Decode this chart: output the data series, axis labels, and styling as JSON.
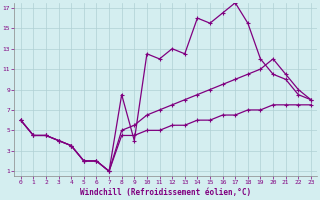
{
  "bg_color": "#d4eef0",
  "line_color": "#800080",
  "grid_color": "#b0d0d4",
  "xlabel": "Windchill (Refroidissement éolien,°C)",
  "xlabel_color": "#800080",
  "tick_color": "#800080",
  "xlim": [
    -0.5,
    23.5
  ],
  "ylim": [
    0.5,
    17.5
  ],
  "xticks": [
    0,
    1,
    2,
    3,
    4,
    5,
    6,
    7,
    8,
    9,
    10,
    11,
    12,
    13,
    14,
    15,
    16,
    17,
    18,
    19,
    20,
    21,
    22,
    23
  ],
  "yticks": [
    1,
    3,
    5,
    7,
    9,
    11,
    13,
    15,
    17
  ],
  "common_x": [
    0,
    1,
    2,
    3,
    4,
    5,
    6,
    7
  ],
  "common_y": [
    6,
    4.5,
    4.5,
    4,
    3.5,
    2,
    2,
    1
  ],
  "bot_x": [
    8,
    9,
    10,
    11,
    12,
    13,
    14,
    15,
    16,
    17,
    18,
    19,
    20,
    21,
    22,
    23
  ],
  "bot_y": [
    4.5,
    4.5,
    5,
    5,
    5.5,
    5.5,
    6,
    6,
    6.5,
    6.5,
    7,
    7,
    7.5,
    7.5,
    7.5,
    7.5
  ],
  "mid_x": [
    8,
    9,
    10,
    11,
    12,
    13,
    14,
    15,
    16,
    17,
    18,
    19,
    20,
    21,
    22,
    23
  ],
  "mid_y": [
    5,
    5.5,
    6.5,
    7,
    7.5,
    8,
    8.5,
    9,
    9.5,
    10,
    10.5,
    11,
    12,
    10.5,
    9,
    8
  ],
  "top_x": [
    8,
    9,
    10,
    11,
    12,
    13,
    14,
    15,
    16,
    17,
    18,
    19,
    20,
    21,
    22,
    23
  ],
  "top_y": [
    8.5,
    4,
    12.5,
    12,
    13,
    12.5,
    16,
    15.5,
    16.5,
    17.5,
    15.5,
    12,
    10.5,
    10,
    8.5,
    8
  ],
  "figsize": [
    3.2,
    2.0
  ],
  "dpi": 100
}
